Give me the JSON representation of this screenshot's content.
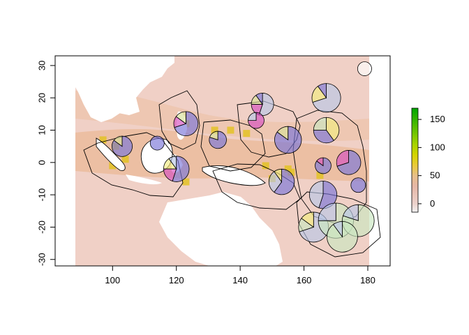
{
  "chart_data": {
    "type": "heatmap",
    "title": "",
    "xlabel": "",
    "ylabel": "",
    "xlim": [
      82,
      187
    ],
    "ylim": [
      -32,
      33
    ],
    "x_ticks": [
      {
        "value": 100,
        "label": "100"
      },
      {
        "value": 120,
        "label": "120"
      },
      {
        "value": 140,
        "label": "140"
      },
      {
        "value": 160,
        "label": "160"
      },
      {
        "value": 180,
        "label": "180"
      }
    ],
    "y_ticks": [
      {
        "value": 30,
        "label": "30"
      },
      {
        "value": 20,
        "label": "20"
      },
      {
        "value": 10,
        "label": "10"
      },
      {
        "value": 0,
        "label": "0"
      },
      {
        "value": -10,
        "label": "-10"
      },
      {
        "value": -20,
        "label": "-20"
      },
      {
        "value": -30,
        "label": "-30"
      }
    ],
    "raster_extent": {
      "lon": [
        90,
        180
      ],
      "lat": [
        -32,
        33
      ]
    },
    "colorbar": {
      "range": [
        -15,
        170
      ],
      "ticks": [
        {
          "value": 0,
          "label": "0"
        },
        {
          "value": 50,
          "label": "50"
        },
        {
          "value": 100,
          "label": "100"
        },
        {
          "value": 150,
          "label": "150"
        }
      ],
      "colors": [
        "#f2f2f2",
        "#eac7bd",
        "#e6b490",
        "#e8c24a",
        "#d4d20a",
        "#9fd400",
        "#4fbd00",
        "#00a600"
      ]
    },
    "hotspots": [
      {
        "lon": 97,
        "lat": 7
      },
      {
        "lon": 101,
        "lat": 5
      },
      {
        "lon": 104,
        "lat": 1
      },
      {
        "lon": 112,
        "lat": 3
      },
      {
        "lon": 120,
        "lat": -1
      },
      {
        "lon": 123,
        "lat": 12
      },
      {
        "lon": 132,
        "lat": 10
      },
      {
        "lon": 137,
        "lat": 10
      },
      {
        "lon": 148,
        "lat": -1
      },
      {
        "lon": 155,
        "lat": -2
      },
      {
        "lon": 150,
        "lat": -5
      },
      {
        "lon": 156,
        "lat": -3
      },
      {
        "lon": 165,
        "lat": -4
      },
      {
        "lon": 123,
        "lat": -6
      },
      {
        "lon": 130,
        "lat": -13
      },
      {
        "lon": 100,
        "lat": -1
      },
      {
        "lon": 142,
        "lat": 9
      }
    ],
    "pies": [
      {
        "lon": 179,
        "lat": 29,
        "radius": 2.2,
        "slices": [
          {
            "value": 1,
            "color": "#ffffff"
          }
        ]
      },
      {
        "lon": 147,
        "lat": 18,
        "radius": 3.5,
        "slices": [
          {
            "value": 0.55,
            "color": "#b9c6e6"
          },
          {
            "value": 0.2,
            "color": "#d54fc0"
          },
          {
            "value": 0.15,
            "color": "#d9e29a"
          },
          {
            "value": 0.1,
            "color": "#7a74d8"
          }
        ]
      },
      {
        "lon": 167,
        "lat": 20,
        "radius": 4.5,
        "slices": [
          {
            "value": 0.7,
            "color": "#b9c6e6"
          },
          {
            "value": 0.2,
            "color": "#f2ec80"
          },
          {
            "value": 0.1,
            "color": "#7a74d8"
          }
        ]
      },
      {
        "lon": 145,
        "lat": 13,
        "radius": 2.5,
        "slices": [
          {
            "value": 0.75,
            "color": "#d54fc0"
          },
          {
            "value": 0.25,
            "color": "#b9c6e6"
          }
        ]
      },
      {
        "lon": 123,
        "lat": 12,
        "radius": 3.8,
        "slices": [
          {
            "value": 0.7,
            "color": "#7a74d8"
          },
          {
            "value": 0.15,
            "color": "#d54fc0"
          },
          {
            "value": 0.15,
            "color": "#d9e29a"
          }
        ]
      },
      {
        "lon": 133,
        "lat": 7,
        "radius": 2.7,
        "slices": [
          {
            "value": 0.8,
            "color": "#7a74d8"
          },
          {
            "value": 0.2,
            "color": "#d9e29a"
          }
        ]
      },
      {
        "lon": 155,
        "lat": 7,
        "radius": 4.2,
        "slices": [
          {
            "value": 0.85,
            "color": "#7a74d8"
          },
          {
            "value": 0.15,
            "color": "#d9e29a"
          }
        ]
      },
      {
        "lon": 167,
        "lat": 10,
        "radius": 4.0,
        "slices": [
          {
            "value": 0.4,
            "color": "#f2ec80"
          },
          {
            "value": 0.35,
            "color": "#7a74d8"
          },
          {
            "value": 0.25,
            "color": "#c9e6c0"
          }
        ]
      },
      {
        "lon": 103,
        "lat": 5,
        "radius": 3.2,
        "slices": [
          {
            "value": 0.85,
            "color": "#7a74d8"
          },
          {
            "value": 0.15,
            "color": "#d9e29a"
          }
        ]
      },
      {
        "lon": 114,
        "lat": 6,
        "radius": 2.2,
        "slices": [
          {
            "value": 1,
            "color": "#7a74d8"
          }
        ]
      },
      {
        "lon": 120,
        "lat": -2,
        "radius": 4.0,
        "slices": [
          {
            "value": 0.55,
            "color": "#7a74d8"
          },
          {
            "value": 0.2,
            "color": "#d54fc0"
          },
          {
            "value": 0.15,
            "color": "#f2ec80"
          },
          {
            "value": 0.1,
            "color": "#b9c6e6"
          }
        ]
      },
      {
        "lon": 153,
        "lat": -6,
        "radius": 4.0,
        "slices": [
          {
            "value": 0.6,
            "color": "#7a74d8"
          },
          {
            "value": 0.3,
            "color": "#b9c6e6"
          },
          {
            "value": 0.1,
            "color": "#f2ec80"
          }
        ]
      },
      {
        "lon": 166,
        "lat": -1,
        "radius": 2.5,
        "slices": [
          {
            "value": 0.85,
            "color": "#7a74d8"
          },
          {
            "value": 0.15,
            "color": "#d54fc0"
          }
        ]
      },
      {
        "lon": 174,
        "lat": 0,
        "radius": 3.8,
        "slices": [
          {
            "value": 0.7,
            "color": "#7a74d8"
          },
          {
            "value": 0.3,
            "color": "#d54fc0"
          }
        ]
      },
      {
        "lon": 166,
        "lat": -10,
        "radius": 4.3,
        "slices": [
          {
            "value": 0.55,
            "color": "#7a74d8"
          },
          {
            "value": 0.45,
            "color": "#b9c6e6"
          }
        ]
      },
      {
        "lon": 177,
        "lat": -7,
        "radius": 2.3,
        "slices": [
          {
            "value": 1,
            "color": "#7a74d8"
          }
        ]
      },
      {
        "lon": 163,
        "lat": -20,
        "radius": 4.7,
        "slices": [
          {
            "value": 0.7,
            "color": "#b9c6e6"
          },
          {
            "value": 0.15,
            "color": "#c9e6c0"
          },
          {
            "value": 0.15,
            "color": "#f2ec80"
          }
        ]
      },
      {
        "lon": 170,
        "lat": -18,
        "radius": 5.5,
        "slices": [
          {
            "value": 0.75,
            "color": "#c9e6c0"
          },
          {
            "value": 0.25,
            "color": "#b9c6e6"
          }
        ]
      },
      {
        "lon": 177,
        "lat": -18,
        "radius": 5.0,
        "slices": [
          {
            "value": 0.8,
            "color": "#c9e6c0"
          },
          {
            "value": 0.2,
            "color": "#b9c6e6"
          }
        ]
      },
      {
        "lon": 172,
        "lat": -23,
        "radius": 4.8,
        "slices": [
          {
            "value": 0.9,
            "color": "#c9e6c0"
          },
          {
            "value": 0.1,
            "color": "#b9c6e6"
          }
        ]
      }
    ]
  }
}
